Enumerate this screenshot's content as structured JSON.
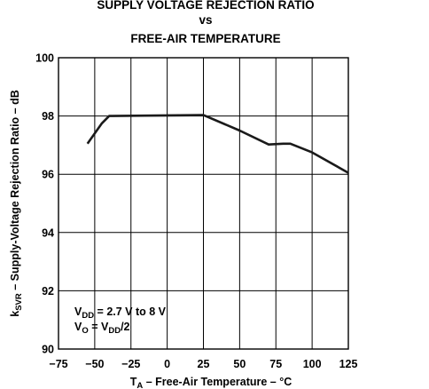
{
  "chart_data": {
    "type": "line",
    "title_lines": [
      "SUPPLY VOLTAGE REJECTION RATIO",
      "vs",
      "FREE-AIR TEMPERATURE"
    ],
    "xlabel": {
      "main": "T",
      "sub": "A",
      "rest": " – Free-Air Temperature  – °C"
    },
    "ylabel": {
      "main": "k",
      "sub": "SVR",
      "rest": " – Supply-Voltage Rejection Ratio – dB"
    },
    "xlim": [
      -75,
      125
    ],
    "ylim": [
      90,
      100
    ],
    "x_ticks": [
      -75,
      -50,
      -25,
      0,
      25,
      50,
      75,
      100,
      125
    ],
    "x_tick_labels": [
      "−75",
      "−50",
      "−25",
      "0",
      "25",
      "50",
      "75",
      "100",
      "125"
    ],
    "y_ticks": [
      90,
      92,
      94,
      96,
      98,
      100
    ],
    "y_tick_labels": [
      "90",
      "92",
      "94",
      "96",
      "98",
      "100"
    ],
    "grid": true,
    "annotations": [
      {
        "main": "V",
        "sub": "DD",
        "rest": " = 2.7 V to 8 V"
      },
      {
        "main": "V",
        "sub": "O",
        "rest": " = V",
        "sub2": "DD",
        "rest2": "/2"
      }
    ],
    "series": [
      {
        "x": [
          -55,
          -45,
          -40,
          0,
          25,
          50,
          70,
          80,
          85,
          100,
          125
        ],
        "y": [
          97.05,
          97.75,
          98.0,
          98.02,
          98.03,
          97.5,
          97.02,
          97.05,
          97.05,
          96.75,
          96.05
        ]
      }
    ]
  }
}
